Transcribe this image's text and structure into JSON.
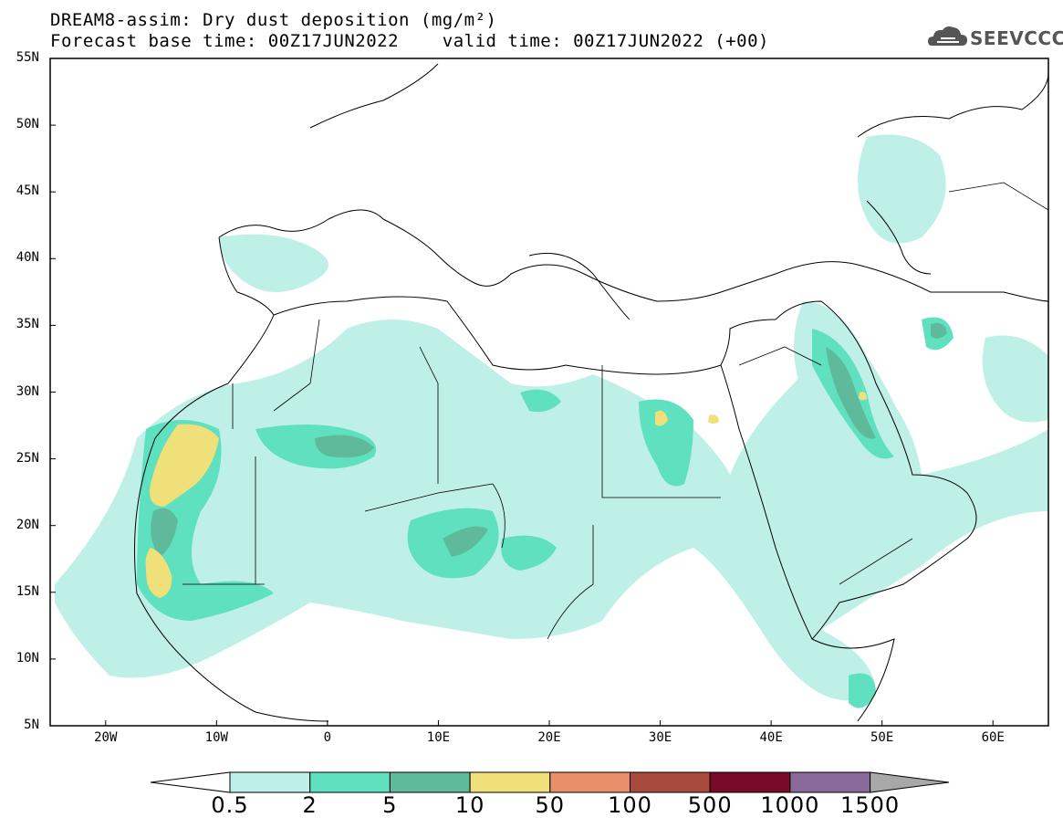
{
  "title": {
    "line1": "DREAM8-assim: Dry dust deposition (mg/m²)",
    "line2": "Forecast base time: 00Z17JUN2022    valid time: 00Z17JUN2022 (+00)"
  },
  "logo": {
    "text": "SEEVCCC",
    "icon": "cloud-icon"
  },
  "map": {
    "lon_range": [
      -25,
      65
    ],
    "lat_range": [
      5,
      55
    ],
    "lat_ticks": [
      {
        "value": 55,
        "label": "55N"
      },
      {
        "value": 50,
        "label": "50N"
      },
      {
        "value": 45,
        "label": "45N"
      },
      {
        "value": 40,
        "label": "40N"
      },
      {
        "value": 35,
        "label": "35N"
      },
      {
        "value": 30,
        "label": "30N"
      },
      {
        "value": 25,
        "label": "25N"
      },
      {
        "value": 20,
        "label": "20N"
      },
      {
        "value": 15,
        "label": "15N"
      },
      {
        "value": 10,
        "label": "10N"
      },
      {
        "value": 5,
        "label": "5N"
      }
    ],
    "lon_ticks": [
      {
        "value": -20,
        "label": "20W"
      },
      {
        "value": -10,
        "label": "10W"
      },
      {
        "value": 0,
        "label": "0"
      },
      {
        "value": 10,
        "label": "10E"
      },
      {
        "value": 20,
        "label": "20E"
      },
      {
        "value": 30,
        "label": "30E"
      },
      {
        "value": 40,
        "label": "40E"
      },
      {
        "value": 50,
        "label": "50E"
      },
      {
        "value": 60,
        "label": "60E"
      }
    ]
  },
  "colorbar": {
    "labels": [
      "0.5",
      "2",
      "5",
      "10",
      "50",
      "100",
      "500",
      "1000",
      "1500"
    ],
    "colors": [
      "#bff0e8",
      "#5fe0bf",
      "#5fba9c",
      "#f0e07a",
      "#e88e68",
      "#a84a3e",
      "#7a0a2a",
      "#8a6a9a",
      "#a8a8a8"
    ],
    "under_color": "#ffffff"
  }
}
